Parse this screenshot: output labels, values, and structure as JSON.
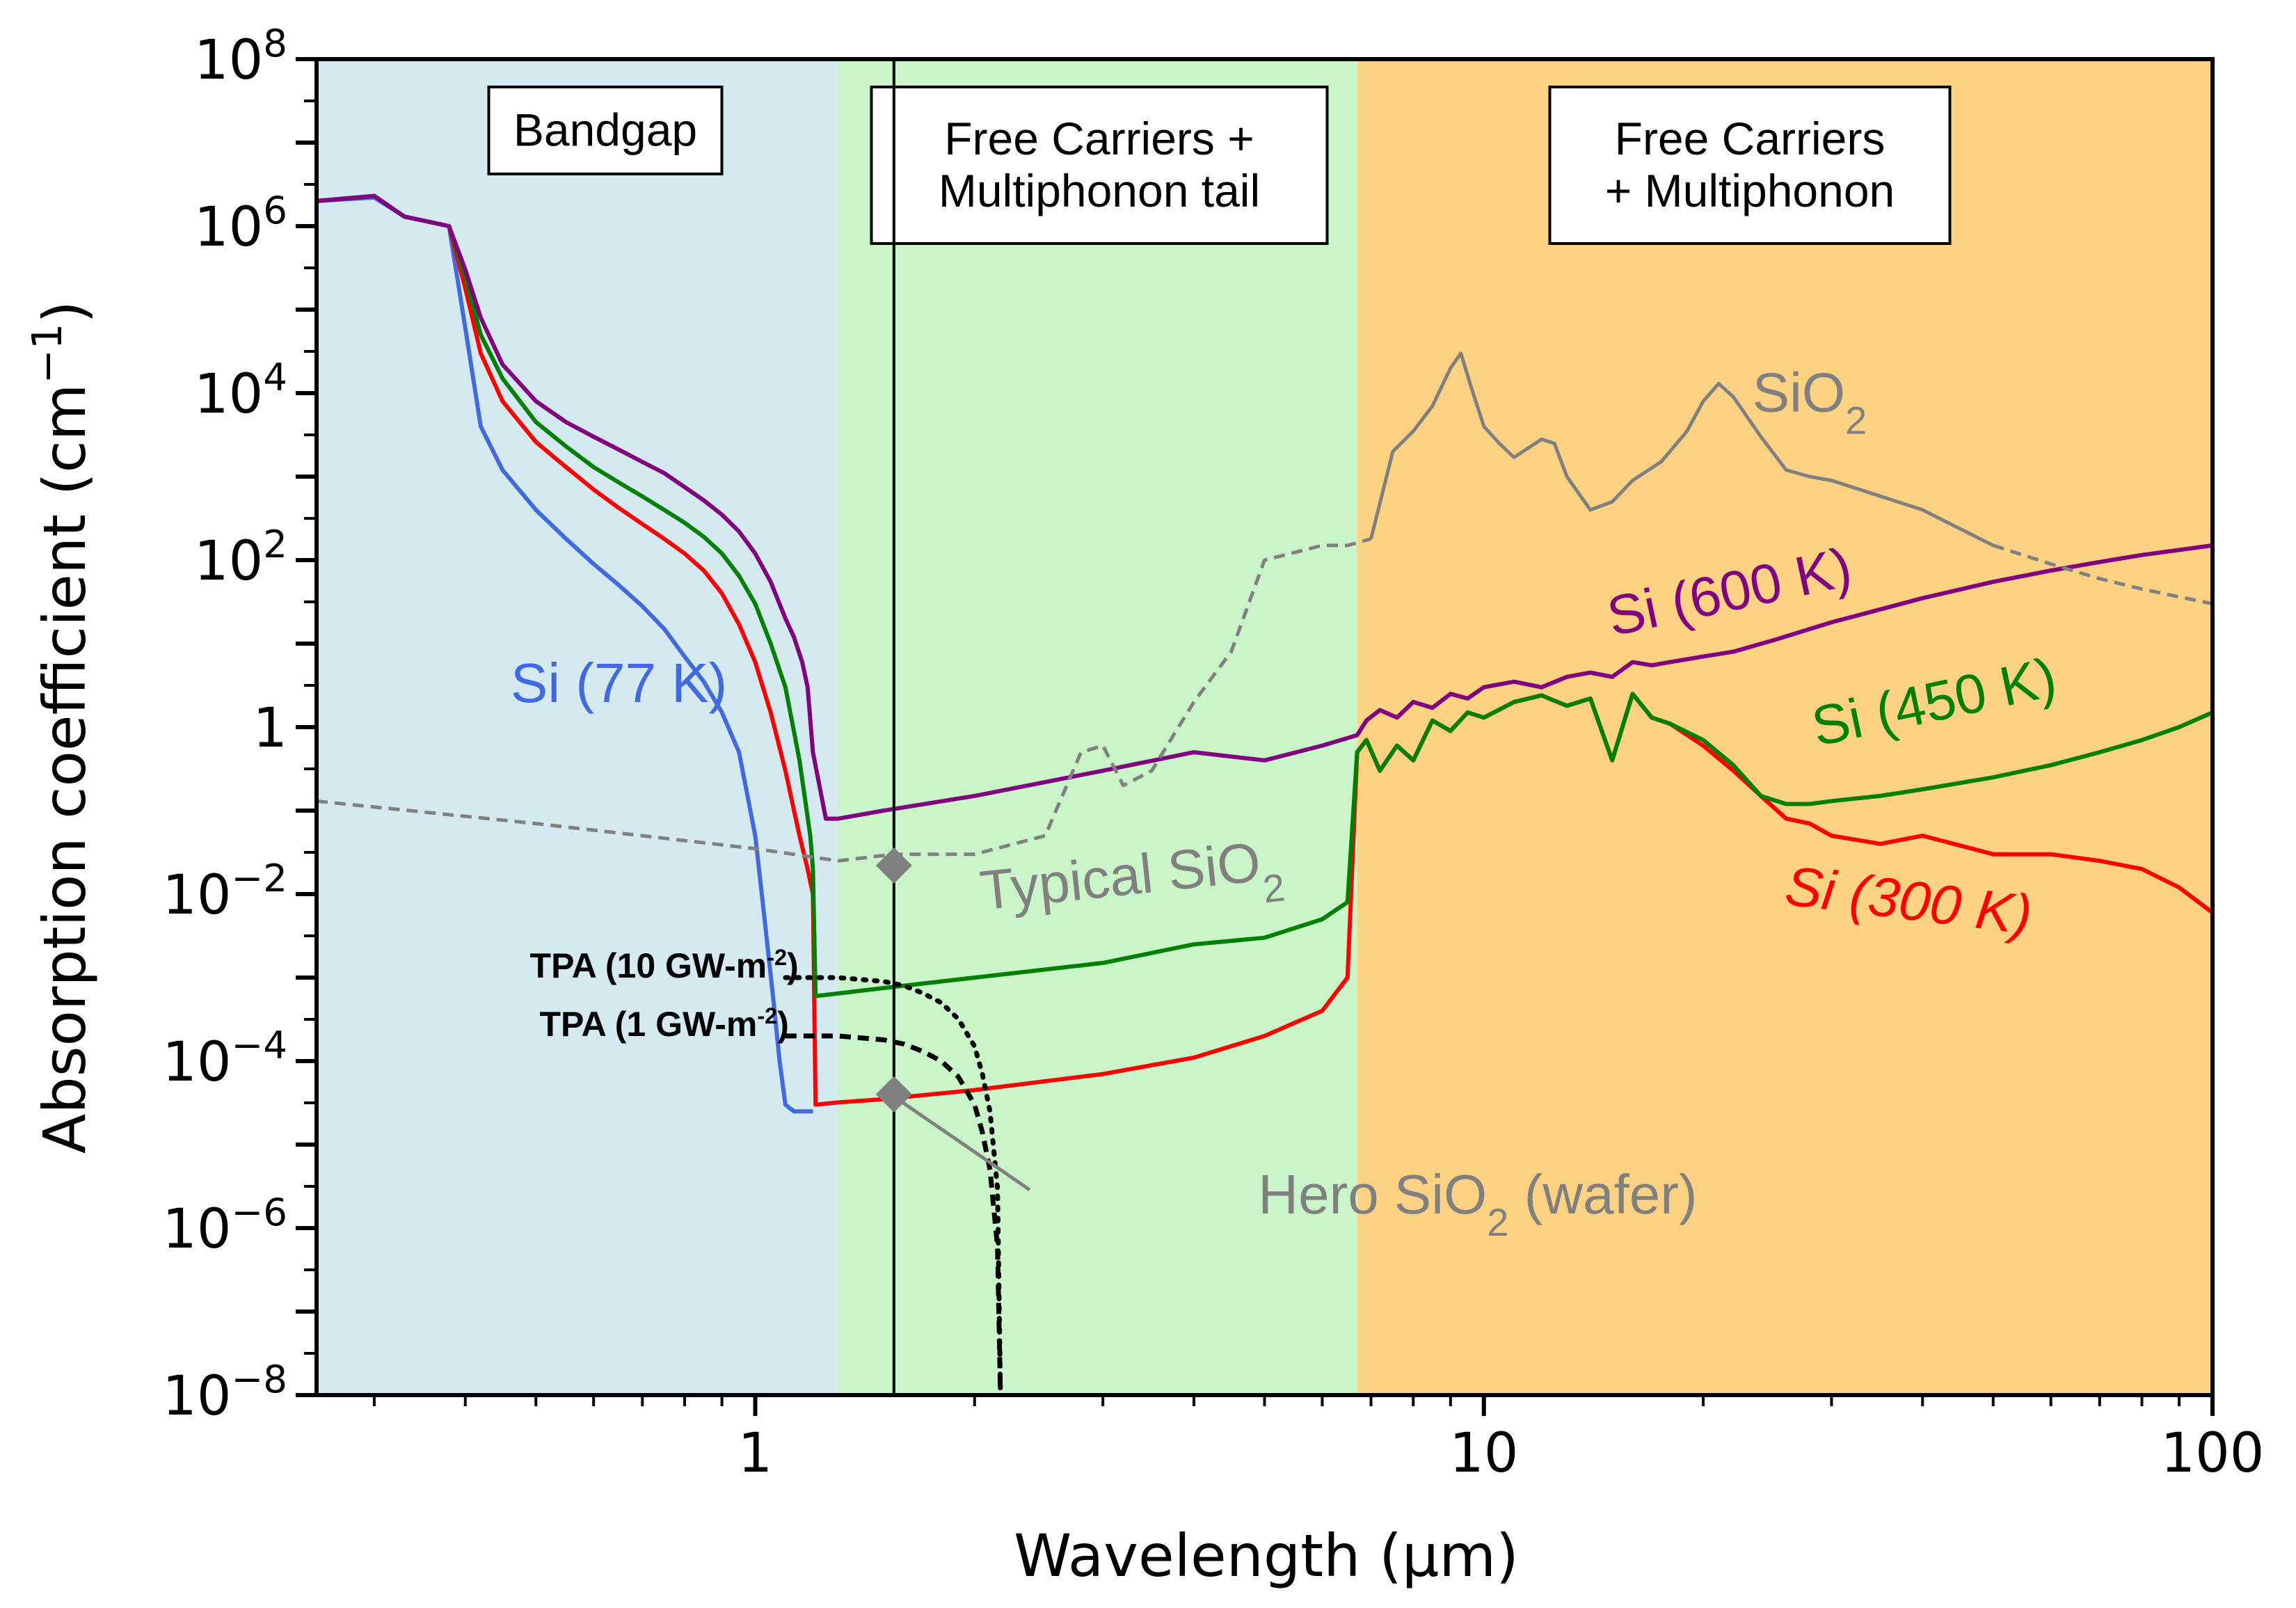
{
  "chart_data": {
    "type": "line",
    "xscale": "log",
    "yscale": "log",
    "xlim": [
      0.25,
      100
    ],
    "ylim": [
      1e-08,
      100000000.0
    ],
    "xlabel": "Wavelength (μm)",
    "ylabel": "Absorption coefficient (cm⁻¹)",
    "x_ticks": [
      {
        "value": 1,
        "label": "1"
      },
      {
        "value": 10,
        "label": "10"
      },
      {
        "value": 100,
        "label": "100"
      }
    ],
    "y_ticks": [
      {
        "value": 100000000.0,
        "base": "10",
        "exp": "8"
      },
      {
        "value": 1000000.0,
        "base": "10",
        "exp": "6"
      },
      {
        "value": 10000.0,
        "base": "10",
        "exp": "4"
      },
      {
        "value": 100.0,
        "base": "10",
        "exp": "2"
      },
      {
        "value": 1,
        "base": "1",
        "exp": ""
      },
      {
        "value": 0.01,
        "base": "10",
        "exp": "−2"
      },
      {
        "value": 0.0001,
        "base": "10",
        "exp": "−4"
      },
      {
        "value": 1e-06,
        "base": "10",
        "exp": "−6"
      },
      {
        "value": 1e-08,
        "base": "10",
        "exp": "−8"
      }
    ],
    "regions": [
      {
        "name": "Bandgap",
        "lines": [
          "Bandgap"
        ],
        "x_start": 0.25,
        "x_end": 1.3,
        "color": "#d4e9f0"
      },
      {
        "name": "Free Carriers + Multiphonon tail",
        "lines": [
          "Free Carriers +",
          "Multiphonon tail"
        ],
        "x_start": 1.3,
        "x_end": 6.7,
        "color": "#c9f5c9"
      },
      {
        "name": "Free Carriers + Multiphonon",
        "lines": [
          "Free Carriers",
          "+ Multiphonon"
        ],
        "x_start": 6.7,
        "x_end": 100,
        "color": "#fdd383"
      }
    ],
    "reference_line": {
      "x": 1.55
    },
    "series": [
      {
        "name": "Si (77 K)",
        "color": "#4169e1",
        "style": "solid",
        "x": [
          0.25,
          0.3,
          0.33,
          0.38,
          0.4,
          0.42,
          0.45,
          0.5,
          0.55,
          0.6,
          0.65,
          0.7,
          0.75,
          0.8,
          0.85,
          0.9,
          0.95,
          1.0,
          1.03,
          1.06,
          1.08,
          1.1,
          1.13,
          1.16,
          1.2
        ],
        "y": [
          2000000.0,
          2200000.0,
          1300000.0,
          1000000.0,
          60000.0,
          4000.0,
          1200.0,
          400,
          180,
          90,
          50,
          28,
          15,
          7,
          3.5,
          1.5,
          0.5,
          0.05,
          0.005,
          0.0005,
          0.0001,
          3e-05,
          2.5e-05,
          2.5e-05,
          2.5e-05
        ]
      },
      {
        "name": "Si (300 K)",
        "color": "#ff0000",
        "style": "solid",
        "x": [
          0.25,
          0.3,
          0.33,
          0.38,
          0.4,
          0.42,
          0.45,
          0.5,
          0.55,
          0.6,
          0.65,
          0.7,
          0.75,
          0.8,
          0.85,
          0.9,
          0.95,
          1.0,
          1.05,
          1.1,
          1.15,
          1.18,
          1.2,
          1.21,
          1.3,
          1.5,
          2,
          3,
          4,
          5,
          6,
          6.5,
          6.7,
          6.9,
          7.2,
          7.6,
          8,
          8.5,
          9,
          9.5,
          10,
          11,
          12,
          13,
          14,
          15,
          16,
          17,
          18,
          20,
          22,
          24,
          26,
          28,
          30,
          35,
          40,
          50,
          60,
          70,
          80,
          90,
          100
        ],
        "y": [
          2000000.0,
          2300000.0,
          1300000.0,
          1000000.0,
          180000.0,
          30000.0,
          8000.0,
          2600.0,
          1300.0,
          700,
          420,
          270,
          180,
          120,
          75,
          40,
          17,
          6,
          1.5,
          0.3,
          0.05,
          0.02,
          0.01,
          3e-05,
          3.2e-05,
          3.5e-05,
          4.5e-05,
          7e-05,
          0.00011,
          0.0002,
          0.0004,
          0.001,
          0.5,
          0.7,
          0.3,
          0.6,
          0.4,
          1.2,
          0.9,
          1.5,
          1.3,
          2,
          2.4,
          1.8,
          2.2,
          0.4,
          2.5,
          1.3,
          1.1,
          0.6,
          0.3,
          0.15,
          0.08,
          0.07,
          0.05,
          0.04,
          0.05,
          0.03,
          0.03,
          0.025,
          0.02,
          0.012,
          0.006
        ]
      },
      {
        "name": "Si (450 K)",
        "color": "#008000",
        "style": "solid",
        "x": [
          0.25,
          0.3,
          0.33,
          0.38,
          0.4,
          0.42,
          0.45,
          0.5,
          0.55,
          0.6,
          0.65,
          0.7,
          0.75,
          0.8,
          0.85,
          0.9,
          0.95,
          1.0,
          1.05,
          1.1,
          1.15,
          1.19,
          1.2,
          1.21,
          1.5,
          2,
          3,
          4,
          5,
          6,
          6.5,
          6.7,
          6.9,
          7.2,
          7.6,
          8,
          8.5,
          9,
          9.5,
          10,
          11,
          12,
          13,
          14,
          15,
          16,
          17,
          18,
          20,
          22,
          24,
          26,
          28,
          30,
          35,
          40,
          50,
          60,
          70,
          80,
          90,
          100
        ],
        "y": [
          2000000.0,
          2300000.0,
          1300000.0,
          1000000.0,
          250000.0,
          50000.0,
          15000.0,
          4500.0,
          2300.0,
          1300.0,
          850,
          580,
          400,
          280,
          190,
          120,
          65,
          30,
          10,
          3,
          0.4,
          0.05,
          0.02,
          0.0006,
          0.00075,
          0.001,
          0.0015,
          0.0025,
          0.003,
          0.005,
          0.008,
          0.5,
          0.7,
          0.3,
          0.6,
          0.4,
          1.2,
          0.9,
          1.5,
          1.3,
          2,
          2.4,
          1.8,
          2.2,
          0.4,
          2.5,
          1.3,
          1.1,
          0.7,
          0.35,
          0.15,
          0.12,
          0.12,
          0.13,
          0.15,
          0.18,
          0.25,
          0.35,
          0.5,
          0.7,
          1.0,
          1.5
        ]
      },
      {
        "name": "Si (600 K)",
        "color": "#800080",
        "style": "solid",
        "x": [
          0.25,
          0.3,
          0.33,
          0.38,
          0.4,
          0.42,
          0.45,
          0.5,
          0.55,
          0.6,
          0.65,
          0.7,
          0.75,
          0.8,
          0.85,
          0.9,
          0.95,
          1.0,
          1.05,
          1.1,
          1.13,
          1.16,
          1.18,
          1.2,
          1.25,
          1.3,
          1.5,
          2,
          3,
          4,
          5,
          6,
          6.7,
          6.9,
          7.2,
          7.6,
          8,
          8.5,
          9,
          9.5,
          10,
          11,
          12,
          13,
          14,
          15,
          16,
          17,
          18,
          20,
          22,
          25,
          30,
          40,
          50,
          60,
          70,
          80,
          100
        ],
        "y": [
          2000000.0,
          2300000.0,
          1300000.0,
          1000000.0,
          300000.0,
          80000.0,
          22000.0,
          8000.0,
          4500.0,
          3000.0,
          2100.0,
          1500.0,
          1100.0,
          750,
          520,
          350,
          220,
          120,
          55,
          20,
          12,
          6,
          3,
          0.5,
          0.08,
          0.08,
          0.1,
          0.15,
          0.3,
          0.5,
          0.4,
          0.6,
          0.8,
          1.2,
          1.6,
          1.3,
          2,
          1.7,
          2.5,
          2.2,
          3,
          3.5,
          3,
          4,
          4.5,
          4,
          6,
          5.5,
          6,
          7,
          8,
          11,
          18,
          35,
          55,
          75,
          95,
          115,
          150
        ]
      },
      {
        "name": "SiO2",
        "color": "#808080",
        "style": "segments",
        "segments": [
          {
            "style": "dashed",
            "x": [
              0.25,
              0.5,
              1.0,
              1.3,
              1.55,
              2,
              2.5,
              2.8,
              3.0,
              3.2,
              3.5,
              4.0,
              4.5,
              5.0,
              6.0,
              6.5,
              7.0
            ],
            "y": [
              0.13,
              0.07,
              0.035,
              0.025,
              0.03,
              0.03,
              0.05,
              0.5,
              0.6,
              0.2,
              0.3,
              2,
              8,
              100,
              150,
              150,
              180
            ]
          },
          {
            "style": "solid",
            "x": [
              7.0,
              7.5,
              8.0,
              8.5,
              9.0,
              9.3,
              9.6,
              10.0,
              10.5,
              11.0,
              12.0,
              12.5,
              13.0,
              14.0,
              15.0,
              16.0,
              17.5,
              18.0,
              19.0,
              20.0,
              21.0,
              22.0,
              24.0,
              26.0,
              28.0,
              30.0,
              40.0,
              50.0
            ],
            "y": [
              180,
              2000,
              3500,
              7000,
              20000,
              30000,
              12000,
              4000,
              2500,
              1700,
              2800,
              2500,
              1000,
              400,
              500,
              900,
              1500,
              2000,
              3500,
              8000,
              13000,
              9000,
              3000,
              1200,
              1000,
              900,
              400,
              150
            ]
          },
          {
            "style": "dashed",
            "x": [
              50,
              60,
              70,
              80,
              100
            ],
            "y": [
              150,
              90,
              60,
              45,
              30
            ]
          }
        ]
      },
      {
        "name": "TPA (10 GW-m-2)",
        "color": "#000000",
        "style": "dotted",
        "x": [
          1.1,
          1.2,
          1.3,
          1.5,
          1.6,
          1.7,
          1.8,
          1.9,
          2.0,
          2.05,
          2.1,
          2.15,
          2.17
        ],
        "y": [
          0.001,
          0.001,
          0.001,
          0.0009,
          0.0008,
          0.00065,
          0.0005,
          0.00032,
          0.00015,
          7e-05,
          2.5e-05,
          3e-06,
          1e-08
        ]
      },
      {
        "name": "TPA (1 GW-m-2)",
        "color": "#000000",
        "style": "dashed",
        "x": [
          1.1,
          1.2,
          1.3,
          1.5,
          1.6,
          1.7,
          1.8,
          1.9,
          2.0,
          2.05,
          2.1,
          2.15,
          2.17
        ],
        "y": [
          0.0002,
          0.0002,
          0.0002,
          0.00018,
          0.00016,
          0.00013,
          0.0001,
          6.5e-05,
          3e-05,
          1.4e-05,
          5e-06,
          6e-07,
          1e-08
        ]
      }
    ],
    "markers": [
      {
        "name": "Typical SiO2",
        "x": 1.55,
        "y": 0.022,
        "shape": "diamond",
        "color": "#808080"
      },
      {
        "name": "Hero SiO2 (wafer)",
        "x": 1.55,
        "y": 4e-05,
        "shape": "diamond",
        "color": "#808080"
      }
    ],
    "annotations": {
      "si77": {
        "main": "Si (77 K)",
        "color": "#4169e1",
        "x": 0.65,
        "y": 2
      },
      "si300": {
        "main": "Si (300 K)",
        "color": "#ff0000",
        "x": 38,
        "y": 0.005,
        "rotate": 7
      },
      "si450": {
        "main": "Si (450 K)",
        "color": "#008000",
        "x": 42,
        "y": 1.2,
        "rotate": -12
      },
      "si600": {
        "main": "Si (600 K)",
        "color": "#800080",
        "x": 22,
        "y": 25,
        "rotate": -12
      },
      "sio2": {
        "main": "SiO",
        "sub": "2",
        "color": "#808080",
        "x": 28,
        "y": 6000
      },
      "typical": {
        "main": "Typical SiO",
        "sub": "2",
        "color": "#808080",
        "x": 3.3,
        "y": 0.01,
        "rotate": -6
      },
      "hero": {
        "main": "Hero SiO",
        "sub": "2",
        "tail": " (wafer)",
        "color": "#808080",
        "x": 4.9,
        "y": 1.5e-06
      },
      "tpa10": {
        "main": "TPA (10 GW-m",
        "sup": "-2",
        "tail": ")",
        "x": 0.75,
        "y": 0.001
      },
      "tpa1": {
        "main": "TPA (1 GW-m",
        "sup": "-2",
        "tail": ")",
        "x": 0.75,
        "y": 0.0002
      }
    }
  }
}
